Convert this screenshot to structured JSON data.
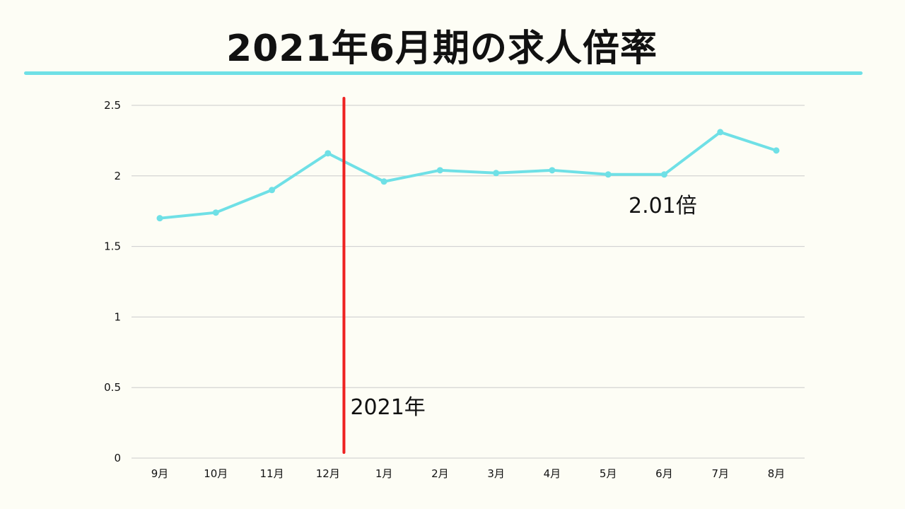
{
  "title": "2021年6月期の求人倍率",
  "colors": {
    "line": "#6fe0e6",
    "marker_line": "#ee2222",
    "grid": "#cccccc",
    "text": "#111111",
    "background": "#fdfdf5"
  },
  "chart_data": {
    "type": "line",
    "title": "2021年6月期の求人倍率",
    "xlabel": "",
    "ylabel": "",
    "categories": [
      "9月",
      "10月",
      "11月",
      "12月",
      "1月",
      "2月",
      "3月",
      "4月",
      "5月",
      "6月",
      "7月",
      "8月"
    ],
    "series": [
      {
        "values": [
          1.7,
          1.74,
          1.9,
          2.16,
          1.96,
          2.04,
          2.02,
          2.04,
          2.01,
          2.01,
          2.31,
          2.18
        ]
      }
    ],
    "ylim": [
      0,
      2.5
    ],
    "yticks": [
      "0",
      "0.5",
      "1",
      "1.5",
      "2",
      "2.5"
    ],
    "grid": true,
    "legend": "none",
    "annotations": {
      "year_marker_label": "2021年",
      "value_callout": "2.01倍"
    }
  }
}
